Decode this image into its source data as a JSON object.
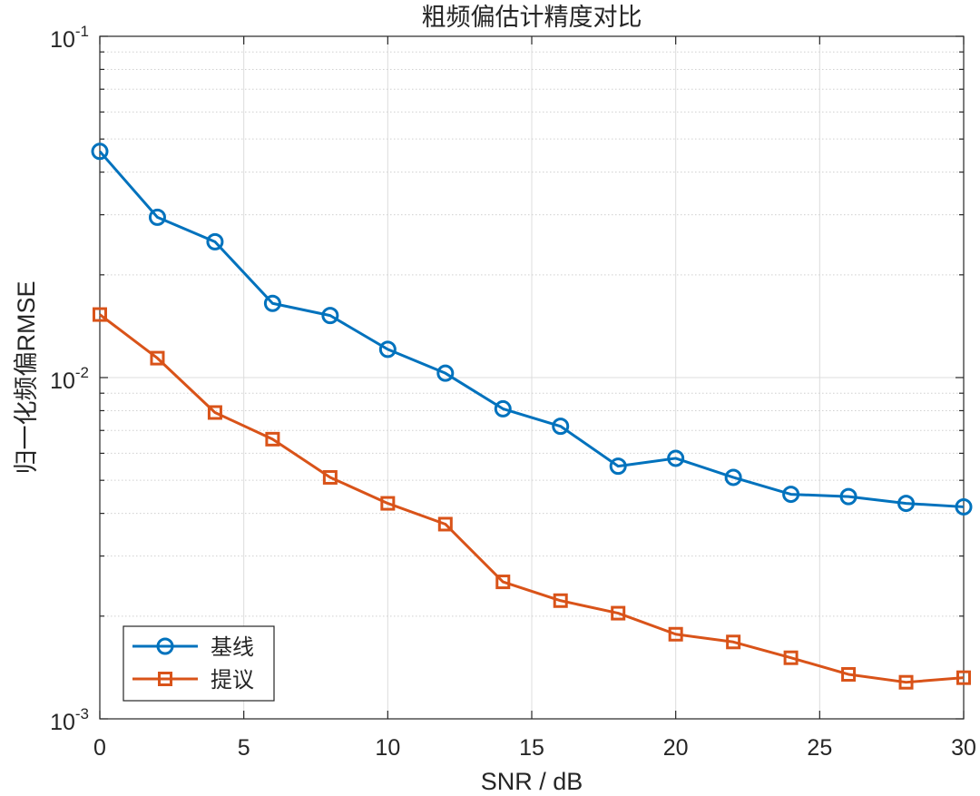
{
  "chart_data": {
    "type": "line",
    "title": "粗频偏估计精度对比",
    "xlabel": "SNR / dB",
    "ylabel": "归一化频偏RMSE",
    "xlim": [
      0,
      30
    ],
    "ylim": [
      0.001,
      0.1
    ],
    "yscale": "log",
    "grid": true,
    "xticks": [
      0,
      5,
      10,
      15,
      20,
      25,
      30
    ],
    "xtick_labels": [
      "0",
      "5",
      "10",
      "15",
      "20",
      "25",
      "30"
    ],
    "yticks": [
      {
        "value": 0.1,
        "base": "10",
        "exp": "-1"
      },
      {
        "value": 0.01,
        "base": "10",
        "exp": "-2"
      },
      {
        "value": 0.001,
        "base": "10",
        "exp": "-3"
      }
    ],
    "legend_position": "bottom-left",
    "x": [
      0,
      2,
      4,
      6,
      8,
      10,
      12,
      14,
      16,
      18,
      20,
      22,
      24,
      26,
      28,
      30
    ],
    "series": [
      {
        "name": "基线",
        "color": "#0072BD",
        "marker": "circle",
        "values": [
          0.046,
          0.0295,
          0.025,
          0.0165,
          0.0152,
          0.0121,
          0.0103,
          0.0081,
          0.0072,
          0.0055,
          0.0058,
          0.0051,
          0.00455,
          0.00448,
          0.00428,
          0.00418
        ]
      },
      {
        "name": "提议",
        "color": "#D95319",
        "marker": "square",
        "values": [
          0.0153,
          0.0114,
          0.0079,
          0.0066,
          0.0051,
          0.00428,
          0.00372,
          0.00252,
          0.00222,
          0.00204,
          0.00177,
          0.00168,
          0.00151,
          0.00135,
          0.00128,
          0.00132
        ]
      }
    ]
  }
}
